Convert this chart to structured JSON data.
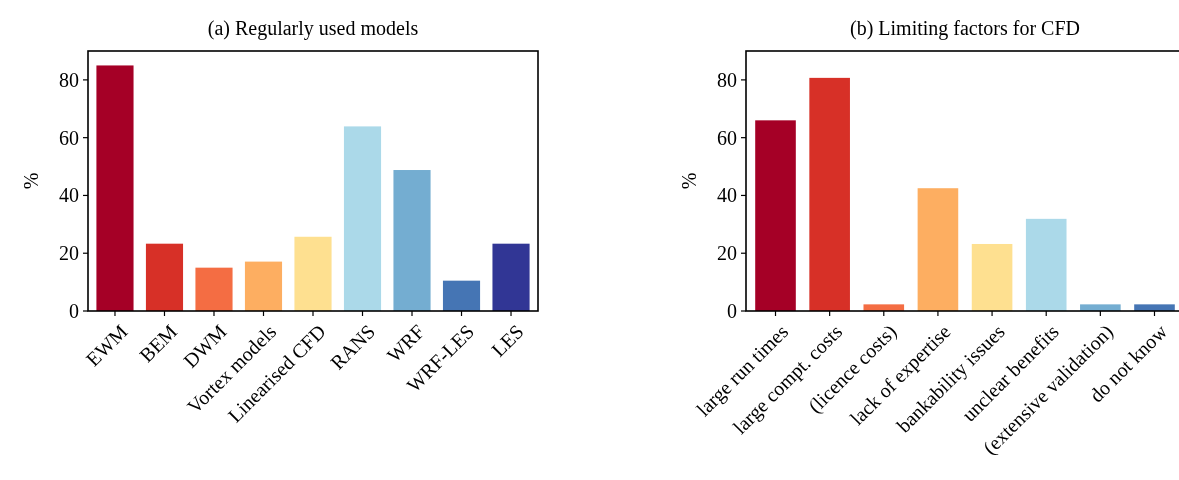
{
  "chart_data": [
    {
      "type": "bar",
      "title": "(a) Regularly used models",
      "ylabel": "%",
      "categories": [
        "EWM",
        "BEM",
        "DWM",
        "Vortex models",
        "Linearised CFD",
        "RANS",
        "WRF",
        "WRF-LES",
        "LES"
      ],
      "values": [
        85,
        23.3,
        15,
        17.1,
        25.7,
        63.9,
        48.8,
        10.5,
        23.3
      ],
      "colors": [
        "#a50026",
        "#d73027",
        "#f46d43",
        "#fdae61",
        "#fee090",
        "#abd9e9",
        "#74add1",
        "#4575b4",
        "#313695"
      ],
      "ylim": [
        0,
        90
      ],
      "yticks": [
        0,
        20,
        40,
        60,
        80
      ],
      "grid": false
    },
    {
      "type": "bar",
      "title": "(b) Limiting factors for CFD",
      "ylabel": "%",
      "categories": [
        "large run times",
        "large compt. costs",
        "(licence costs)",
        "lack of expertise",
        "bankability issues",
        "unclear benefits",
        "(extensive validation)",
        "do not know"
      ],
      "values": [
        66,
        80.7,
        2.3,
        42.5,
        23.2,
        31.9,
        2.3,
        2.3
      ],
      "colors": [
        "#a50026",
        "#d73027",
        "#f46d43",
        "#fdae61",
        "#fee090",
        "#abd9e9",
        "#74add1",
        "#4575b4"
      ],
      "ylim": [
        0,
        90
      ],
      "yticks": [
        0,
        20,
        40,
        60,
        80
      ],
      "grid": false
    }
  ]
}
